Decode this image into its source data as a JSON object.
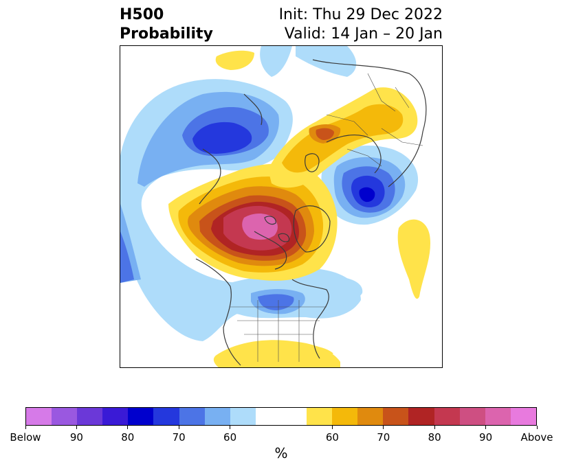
{
  "title": {
    "left_line1": "H500",
    "left_line2": "Probability",
    "right_line1": "Init: Thu 29 Dec 2022",
    "right_line2": "Valid: 14 Jan – 20 Jan"
  },
  "colorbar": {
    "unit": "%",
    "colors": [
      "#d67ae8",
      "#9a58e0",
      "#6b38d8",
      "#3a1ad6",
      "#0000cd",
      "#2438dd",
      "#4c74e6",
      "#78b0f2",
      "#aedcfa",
      "#ffffff",
      "#ffe34a",
      "#f4b90a",
      "#e08a0e",
      "#c8531a",
      "#b02424",
      "#c43850",
      "#ce4f82",
      "#dc64ae",
      "#e87ade"
    ],
    "tick_labels": [
      "Below",
      "90",
      "80",
      "70",
      "60",
      "60",
      "70",
      "80",
      "90",
      "Above"
    ]
  },
  "palette": {
    "blue_light": "#aedcfa",
    "blue_mid": "#78b0f2",
    "blue_med": "#4c74e6",
    "blue_deep": "#2438dd",
    "blue_darkest": "#0000cd",
    "yellow": "#ffe34a",
    "orange_light": "#f4b90a",
    "orange": "#e08a0e",
    "red_orange": "#c8531a",
    "red": "#b02424",
    "crimson": "#c43850",
    "pink": "#dc64ae",
    "border": "#3a3a3a"
  }
}
